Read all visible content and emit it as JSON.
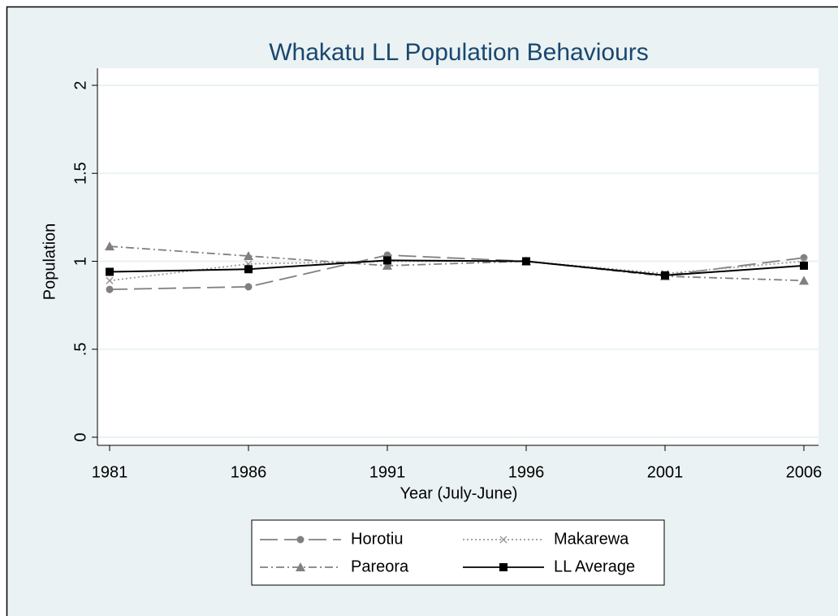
{
  "chart_data": {
    "type": "line",
    "title": "Whakatu LL Population Behaviours",
    "x_label": "Year (July-June)",
    "y_label": "Population",
    "x": [
      1981,
      1986,
      1991,
      1996,
      2001,
      2006
    ],
    "xlim": [
      1981,
      2006
    ],
    "xticks": [
      1981,
      1986,
      1991,
      1996,
      2001,
      2006
    ],
    "ylim": [
      0,
      2
    ],
    "yticks": [
      0,
      {
        "value": 0.5,
        "label": ".5"
      },
      1,
      1.5,
      2
    ],
    "grid": true,
    "series": [
      {
        "name": "Horotiu",
        "color": "#808080",
        "dash": "22 8",
        "marker": "circle",
        "values": [
          0.84,
          0.855,
          1.035,
          1.0,
          0.92,
          1.02
        ]
      },
      {
        "name": "Makarewa",
        "color": "#9a9a9a",
        "dash": "2 3",
        "marker": "x",
        "values": [
          0.89,
          0.985,
          1.0,
          1.0,
          0.93,
          1.0
        ]
      },
      {
        "name": "Pareora",
        "color": "#808080",
        "dash": "10 4 2 4",
        "marker": "triangle",
        "values": [
          1.085,
          1.03,
          0.975,
          1.0,
          0.915,
          0.89
        ]
      },
      {
        "name": "LL Average",
        "color": "#000000",
        "dash": "",
        "marker": "square",
        "values": [
          0.94,
          0.955,
          1.005,
          1.0,
          0.92,
          0.975
        ]
      }
    ]
  }
}
